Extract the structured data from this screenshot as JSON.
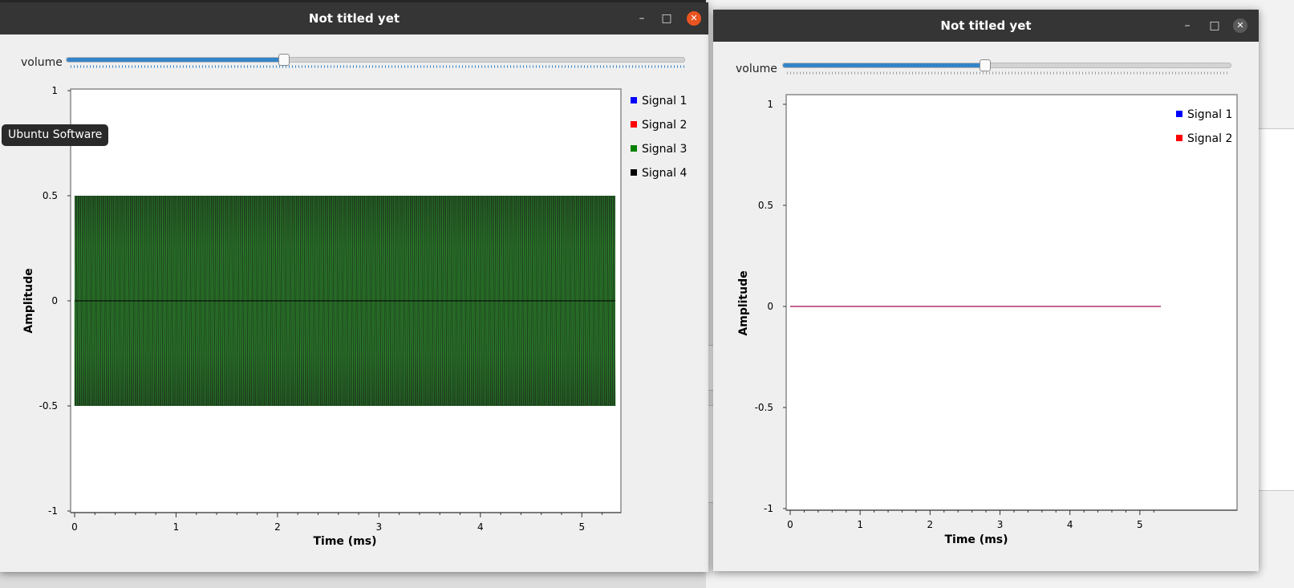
{
  "windows": [
    {
      "title": "Not titled yet",
      "volume": {
        "label": "volume",
        "value": 0.35
      },
      "chart_data": {
        "type": "line",
        "xlabel": "Time (ms)",
        "ylabel": "Amplitude",
        "xlim": [
          -0.05,
          5.35
        ],
        "ylim": [
          -1,
          1
        ],
        "xticks": [
          "0",
          "1",
          "2",
          "3",
          "4",
          "5"
        ],
        "yticks": [
          "1",
          "0.5",
          "0",
          "-0.5",
          "-1"
        ],
        "series": [
          {
            "name": "Signal 1",
            "color": "#0000ff",
            "description": "flat at 0"
          },
          {
            "name": "Signal 2",
            "color": "#ff0000",
            "description": "flat at 0"
          },
          {
            "name": "Signal 3",
            "color": "#008000",
            "description": "dense oscillation between -0.5 and 0.5 over 0 to 5.33 ms"
          },
          {
            "name": "Signal 4",
            "color": "#000000",
            "description": "dense oscillation between -0.5 and 0.5, flat at 0 centre line"
          }
        ],
        "signal_amplitude": 0.5,
        "signal_span_ms": [
          0,
          5.33
        ]
      }
    },
    {
      "title": "Not titled yet",
      "volume": {
        "label": "volume",
        "value": 0.45
      },
      "chart_data": {
        "type": "line",
        "xlabel": "Time (ms)",
        "ylabel": "Amplitude",
        "xlim": [
          -0.1,
          5.4
        ],
        "ylim": [
          -1,
          1
        ],
        "xticks": [
          "0",
          "1",
          "2",
          "3",
          "4",
          "5"
        ],
        "yticks": [
          "1",
          "0.5",
          "0",
          "-0.5",
          "-1"
        ],
        "series": [
          {
            "name": "Signal 1",
            "color": "#0000ff",
            "description": "flat at 0"
          },
          {
            "name": "Signal 2",
            "color": "#ff0000",
            "description": "flat at 0"
          }
        ],
        "signal_span_ms": [
          0,
          5.3
        ]
      }
    }
  ],
  "tooltip": "Ubuntu Software",
  "colors": {
    "titlebar": "#353535",
    "accent": "#e95420",
    "slider": "#3584c8"
  },
  "icons": [
    "minimize-icon",
    "maximize-icon",
    "close-icon"
  ]
}
